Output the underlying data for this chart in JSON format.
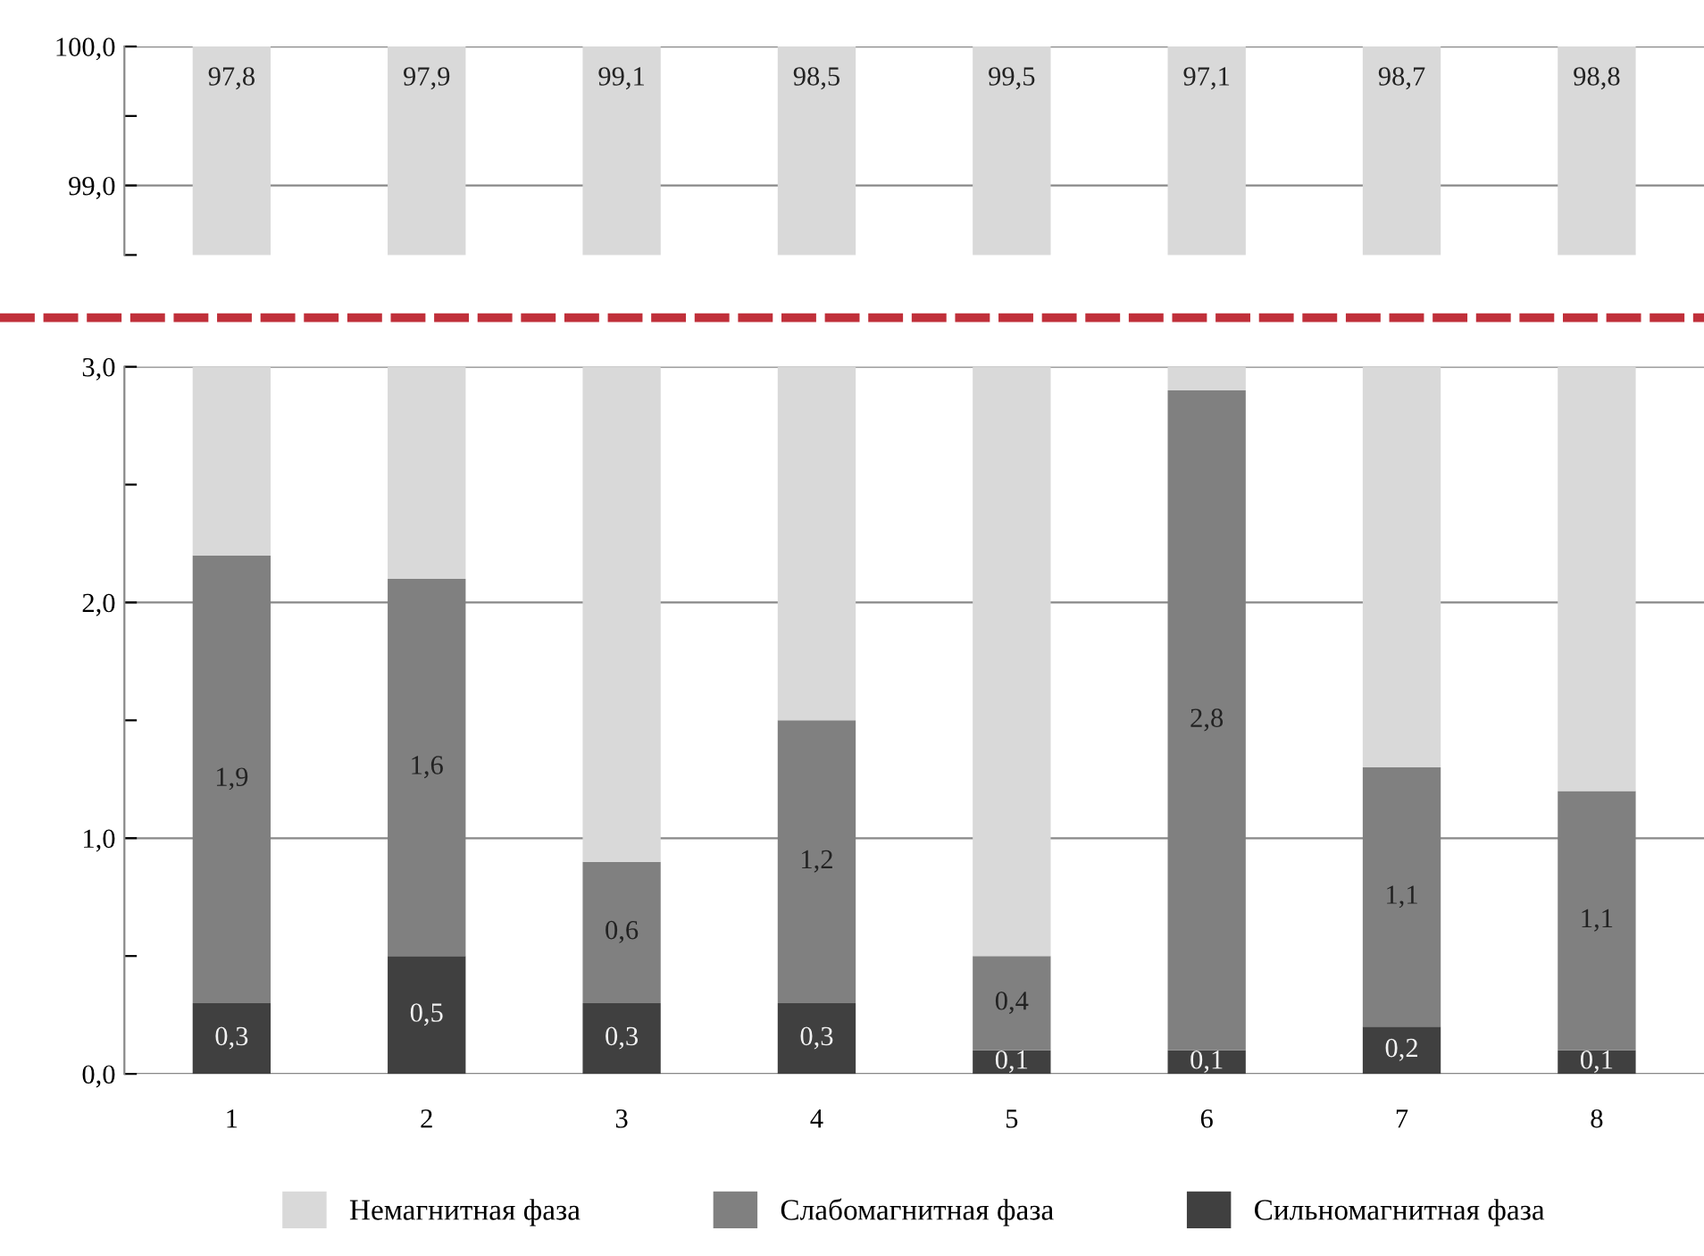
{
  "chart_data": [
    {
      "type": "bar",
      "stacked": true,
      "categories": [
        "1",
        "2",
        "3",
        "4",
        "5",
        "6",
        "7",
        "8"
      ],
      "series": [
        {
          "color": "#d9d9d9",
          "values": [
            100,
            100,
            100,
            100,
            100,
            100,
            100,
            100
          ]
        }
      ],
      "annotations": [
        {
          "text": "97,8",
          "x": "1",
          "y": 100
        },
        {
          "text": "97,9",
          "x": "2",
          "y": 100
        },
        {
          "text": "99,1",
          "x": "3",
          "y": 100
        },
        {
          "text": "98,5",
          "x": "4",
          "y": 100
        },
        {
          "text": "99,5",
          "x": "5",
          "y": 100
        },
        {
          "text": "97,1",
          "x": "6",
          "y": 100
        },
        {
          "text": "98,7",
          "x": "7",
          "y": 100
        },
        {
          "text": "98,8",
          "x": "8",
          "y": 100
        }
      ],
      "ylim": [
        98.5,
        100
      ],
      "yticks": [
        {
          "value": 98.5,
          "label": null
        },
        {
          "value": 99,
          "label": "99,0"
        },
        {
          "value": 99.5,
          "label": null
        },
        {
          "value": 100,
          "label": "100,0"
        }
      ],
      "grid": "y",
      "tick_labels": "y"
    },
    {
      "type": "bar",
      "stacked": true,
      "categories": [
        "1",
        "2",
        "3",
        "4",
        "5",
        "6",
        "7",
        "8"
      ],
      "series": [
        {
          "name": "Сильномагнитная фаза",
          "color": "#404040",
          "values": [
            0.3,
            0.5,
            0.3,
            0.3,
            0.1,
            0.1,
            0.2,
            0.1
          ],
          "value_labels": [
            "0,3",
            "0,5",
            "0,3",
            "0,3",
            "0,1",
            "0,1",
            "0,2",
            "0,1"
          ]
        },
        {
          "name": "Слабомагнитная фаза",
          "color": "#808080",
          "values": [
            1.9,
            1.6,
            0.6,
            1.2,
            0.4,
            2.8,
            1.1,
            1.1
          ],
          "value_labels": [
            "1,9",
            "1,6",
            "0,6",
            "1,2",
            "0,4",
            "2,8",
            "1,1",
            "1,1"
          ]
        },
        {
          "name": "Немагнитная фаза",
          "color": "#d9d9d9",
          "values": [
            0.8,
            0.9,
            2.1,
            1.5,
            2.5,
            0.1,
            1.7,
            1.8
          ]
        }
      ],
      "ylim": [
        0,
        3
      ],
      "yticks": [
        {
          "value": 0,
          "label": "0,0"
        },
        {
          "value": 0.5,
          "label": null
        },
        {
          "value": 1,
          "label": "1,0"
        },
        {
          "value": 1.5,
          "label": null
        },
        {
          "value": 2,
          "label": "2,0"
        },
        {
          "value": 2.5,
          "label": null
        },
        {
          "value": 3,
          "label": "3,0"
        }
      ],
      "grid": "y",
      "legend": "bottom"
    }
  ]
}
